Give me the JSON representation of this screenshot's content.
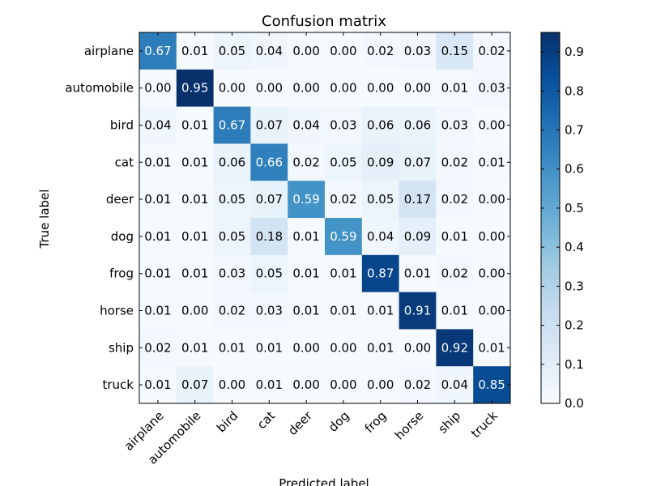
{
  "chart_data": {
    "type": "heatmap",
    "title": "Confusion matrix",
    "xlabel": "Predicted label",
    "ylabel": "True label",
    "x_categories": [
      "airplane",
      "automobile",
      "bird",
      "cat",
      "deer",
      "dog",
      "frog",
      "horse",
      "ship",
      "truck"
    ],
    "y_categories": [
      "airplane",
      "automobile",
      "bird",
      "cat",
      "deer",
      "dog",
      "frog",
      "horse",
      "ship",
      "truck"
    ],
    "values": [
      [
        0.67,
        0.01,
        0.05,
        0.04,
        0.0,
        0.0,
        0.02,
        0.03,
        0.15,
        0.02
      ],
      [
        0.0,
        0.95,
        0.0,
        0.0,
        0.0,
        0.0,
        0.0,
        0.0,
        0.01,
        0.03
      ],
      [
        0.04,
        0.01,
        0.67,
        0.07,
        0.04,
        0.03,
        0.06,
        0.06,
        0.03,
        0.0
      ],
      [
        0.01,
        0.01,
        0.06,
        0.66,
        0.02,
        0.05,
        0.09,
        0.07,
        0.02,
        0.01
      ],
      [
        0.01,
        0.01,
        0.05,
        0.07,
        0.59,
        0.02,
        0.05,
        0.17,
        0.02,
        0.0
      ],
      [
        0.01,
        0.01,
        0.05,
        0.18,
        0.01,
        0.59,
        0.04,
        0.09,
        0.01,
        0.0
      ],
      [
        0.01,
        0.01,
        0.03,
        0.05,
        0.01,
        0.01,
        0.87,
        0.01,
        0.02,
        0.0
      ],
      [
        0.01,
        0.0,
        0.02,
        0.03,
        0.01,
        0.01,
        0.01,
        0.91,
        0.01,
        0.0
      ],
      [
        0.02,
        0.01,
        0.01,
        0.01,
        0.0,
        0.0,
        0.01,
        0.0,
        0.92,
        0.01
      ],
      [
        0.01,
        0.07,
        0.0,
        0.01,
        0.0,
        0.0,
        0.0,
        0.02,
        0.04,
        0.85
      ]
    ],
    "colormap": "Blues",
    "colormap_stops": [
      "#f7fbff",
      "#deebf7",
      "#c6dbef",
      "#9ecae1",
      "#6baed6",
      "#4292c6",
      "#2171b5",
      "#08519c",
      "#08306b"
    ],
    "vmin": 0.0,
    "vmax": 0.95,
    "colorbar_ticks": [
      "0.0",
      "0.1",
      "0.2",
      "0.3",
      "0.4",
      "0.5",
      "0.6",
      "0.7",
      "0.8",
      "0.9"
    ],
    "text_color_threshold": 0.475,
    "text_colors": {
      "light": "#ffffff",
      "dark": "#000000"
    },
    "grid": false
  }
}
